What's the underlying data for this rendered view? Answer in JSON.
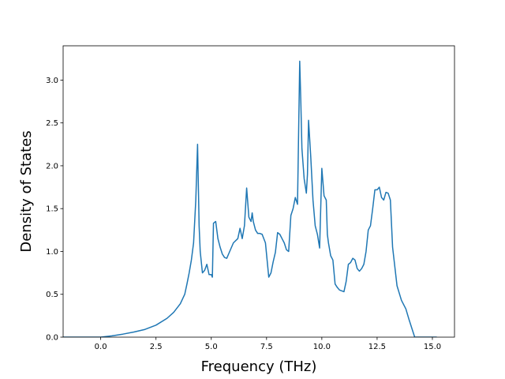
{
  "chart_data": {
    "type": "line",
    "title": "",
    "xlabel": "Frequency (THz)",
    "ylabel": "Density of States",
    "xlim": [
      -1.7,
      16.0
    ],
    "ylim": [
      0,
      3.4
    ],
    "xticks": [
      0.0,
      2.5,
      5.0,
      7.5,
      10.0,
      12.5,
      15.0
    ],
    "xtick_labels": [
      "0.0",
      "2.5",
      "5.0",
      "7.5",
      "10.0",
      "12.5",
      "15.0"
    ],
    "yticks": [
      0.0,
      0.5,
      1.0,
      1.5,
      2.0,
      2.5,
      3.0
    ],
    "ytick_labels": [
      "0.0",
      "0.5",
      "1.0",
      "1.5",
      "2.0",
      "2.5",
      "3.0"
    ],
    "grid": false,
    "legend": "none",
    "series": [
      {
        "color": "#1f77b4",
        "x": [
          -2.3,
          -1.0,
          0.0,
          0.5,
          1.0,
          1.5,
          2.0,
          2.5,
          3.0,
          3.3,
          3.6,
          3.8,
          3.9,
          4.0,
          4.1,
          4.2,
          4.3,
          4.38,
          4.45,
          4.5,
          4.6,
          4.7,
          4.8,
          4.9,
          5.0,
          5.05,
          5.1,
          5.2,
          5.3,
          5.4,
          5.5,
          5.6,
          5.7,
          5.8,
          6.0,
          6.2,
          6.3,
          6.4,
          6.5,
          6.6,
          6.7,
          6.8,
          6.85,
          6.9,
          7.0,
          7.1,
          7.2,
          7.3,
          7.45,
          7.6,
          7.7,
          7.8,
          7.9,
          8.0,
          8.1,
          8.2,
          8.3,
          8.4,
          8.5,
          8.6,
          8.7,
          8.8,
          8.9,
          9.0,
          9.05,
          9.1,
          9.2,
          9.3,
          9.35,
          9.4,
          9.5,
          9.6,
          9.7,
          9.8,
          9.9,
          10.0,
          10.1,
          10.2,
          10.25,
          10.3,
          10.4,
          10.5,
          10.6,
          10.7,
          10.8,
          11.0,
          11.1,
          11.2,
          11.3,
          11.4,
          11.5,
          11.6,
          11.7,
          11.8,
          11.9,
          12.0,
          12.1,
          12.2,
          12.3,
          12.4,
          12.5,
          12.6,
          12.7,
          12.8,
          12.9,
          13.0,
          13.1,
          13.2,
          13.4,
          13.6,
          13.8,
          13.95,
          14.2,
          14.5,
          15.0,
          15.2
        ],
        "y": [
          0.0,
          0.0,
          0.0,
          0.015,
          0.035,
          0.06,
          0.09,
          0.14,
          0.22,
          0.29,
          0.39,
          0.5,
          0.62,
          0.75,
          0.9,
          1.1,
          1.6,
          2.25,
          1.3,
          1.0,
          0.75,
          0.78,
          0.85,
          0.73,
          0.73,
          0.7,
          1.33,
          1.35,
          1.15,
          1.05,
          0.97,
          0.93,
          0.92,
          0.98,
          1.1,
          1.15,
          1.27,
          1.15,
          1.3,
          1.74,
          1.4,
          1.35,
          1.45,
          1.35,
          1.25,
          1.21,
          1.21,
          1.2,
          1.1,
          0.7,
          0.75,
          0.88,
          0.99,
          1.22,
          1.2,
          1.15,
          1.1,
          1.02,
          1.0,
          1.42,
          1.5,
          1.63,
          1.55,
          3.22,
          2.75,
          2.2,
          1.85,
          1.68,
          1.9,
          2.53,
          2.1,
          1.6,
          1.3,
          1.2,
          1.04,
          1.97,
          1.65,
          1.6,
          1.2,
          1.1,
          0.95,
          0.9,
          0.62,
          0.58,
          0.55,
          0.53,
          0.65,
          0.85,
          0.87,
          0.92,
          0.9,
          0.8,
          0.77,
          0.8,
          0.85,
          1.0,
          1.25,
          1.3,
          1.5,
          1.72,
          1.72,
          1.75,
          1.63,
          1.6,
          1.69,
          1.68,
          1.6,
          1.05,
          0.6,
          0.43,
          0.33,
          0.2,
          0.0,
          0.0,
          0.0,
          0.0
        ]
      }
    ]
  }
}
